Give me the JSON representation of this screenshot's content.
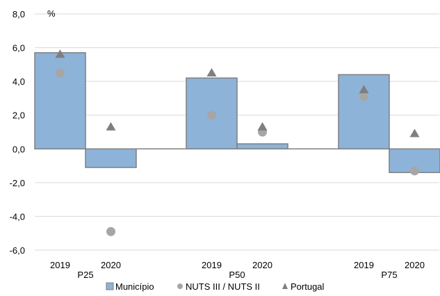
{
  "chart_data": {
    "type": "bar",
    "unit_label": "%",
    "groups": [
      "P25",
      "P50",
      "P75"
    ],
    "years": [
      "2019",
      "2020"
    ],
    "ylim": [
      -6,
      8
    ],
    "yticks": [
      "8,0",
      "6,0",
      "4,0",
      "2,0",
      "0,0",
      "-2,0",
      "-4,0",
      "-6,0"
    ],
    "series": [
      {
        "name": "Município",
        "marker": "bar",
        "values": [
          5.7,
          -1.1,
          4.2,
          0.3,
          4.4,
          -1.4
        ]
      },
      {
        "name": "NUTS III / NUTS II",
        "marker": "circle",
        "values": [
          4.5,
          -4.9,
          2.0,
          1.0,
          3.1,
          -1.3
        ]
      },
      {
        "name": "Portugal",
        "marker": "triangle",
        "values": [
          5.6,
          1.3,
          4.5,
          1.3,
          3.5,
          0.9
        ]
      }
    ],
    "grid": true,
    "legend_position": "bottom",
    "colors": {
      "bar_fill": "#8DB3D9",
      "bar_stroke": "#7F7F7F",
      "circle": "#A6A6A6",
      "triangle": "#7F7F7F",
      "grid": "#D9D9D9",
      "zero_line": "#808080"
    }
  }
}
